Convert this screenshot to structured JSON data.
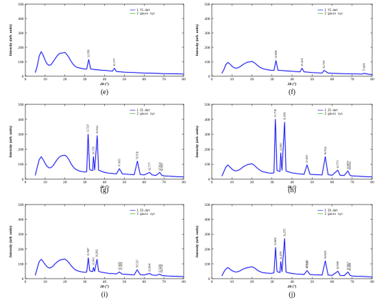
{
  "figure": {
    "ylabel": "Intensity (arb. units)",
    "xlabel": "2θ (°)"
  },
  "chart_data": [
    {
      "type": "line",
      "panel": "(e)",
      "xlim": [
        0,
        80
      ],
      "ylim": [
        0,
        500
      ],
      "xticks": [
        "0",
        "10",
        "20",
        "30",
        "40",
        "50",
        "60",
        "70",
        "80"
      ],
      "yticks": [
        "0",
        "100",
        "200",
        "300",
        "400",
        "500"
      ],
      "xlabel": "2θ (°)",
      "ylabel": "Intensity (arb. units)",
      "legend": [
        "1  Y1.dat",
        "2  gauss sys"
      ],
      "series": [
        {
          "name": "1  Y1.dat",
          "color": "#0000ee",
          "x": [
            5,
            6,
            7,
            8,
            9,
            10,
            11,
            12,
            13,
            14,
            15,
            16,
            17,
            18,
            19,
            20,
            21,
            22,
            23,
            24,
            25,
            26,
            27,
            28,
            29,
            30,
            31,
            32,
            33,
            34,
            36,
            38,
            40,
            42,
            44,
            45,
            46,
            48,
            50,
            55,
            60,
            65,
            70,
            75,
            80
          ],
          "y": [
            25,
            70,
            140,
            170,
            145,
            110,
            85,
            75,
            80,
            100,
            120,
            140,
            155,
            160,
            162,
            165,
            150,
            130,
            105,
            85,
            70,
            62,
            58,
            55,
            52,
            50,
            50,
            115,
            50,
            48,
            45,
            42,
            40,
            38,
            35,
            55,
            33,
            30,
            28,
            25,
            22,
            20,
            18,
            17,
            15
          ]
        }
      ],
      "peaks": [
        {
          "x": 32,
          "y": 115,
          "label": "31.9780"
        },
        {
          "x": 45,
          "y": 55,
          "label": "45.3737"
        }
      ]
    },
    {
      "type": "line",
      "panel": "(f)",
      "xlim": [
        0,
        80
      ],
      "ylim": [
        0,
        500
      ],
      "xticks": [
        "0",
        "10",
        "20",
        "30",
        "40",
        "50",
        "60",
        "70",
        "80"
      ],
      "yticks": [
        "0",
        "100",
        "200",
        "300",
        "400",
        "500"
      ],
      "xlabel": "2θ (°)",
      "ylabel": "Intensity (arb. units)",
      "legend": [
        "1  Y2.dat",
        "2  gauss sys"
      ],
      "series": [
        {
          "name": "1  Y2.dat",
          "color": "#0000ee",
          "x": [
            5,
            6,
            7,
            8,
            9,
            10,
            11,
            12,
            13,
            14,
            15,
            16,
            17,
            18,
            19,
            20,
            21,
            22,
            23,
            24,
            25,
            26,
            27,
            28,
            29,
            30,
            31,
            32,
            33,
            34,
            36,
            38,
            40,
            42,
            44,
            45,
            46,
            48,
            50,
            55,
            56,
            58,
            60,
            65,
            70,
            75,
            76,
            78,
            80
          ],
          "y": [
            20,
            45,
            80,
            95,
            85,
            70,
            60,
            55,
            58,
            65,
            75,
            85,
            92,
            98,
            100,
            103,
            95,
            85,
            72,
            62,
            55,
            50,
            47,
            45,
            42,
            40,
            40,
            108,
            42,
            40,
            38,
            36,
            34,
            32,
            30,
            55,
            30,
            28,
            25,
            22,
            40,
            22,
            20,
            18,
            16,
            15,
            20,
            14,
            12
          ]
        }
      ],
      "peaks": [
        {
          "x": 32,
          "y": 108,
          "label": "31.9698"
        },
        {
          "x": 45,
          "y": 55,
          "label": "45.4102"
        },
        {
          "x": 56,
          "y": 40,
          "label": "56.7070"
        },
        {
          "x": 76,
          "y": 20,
          "label": "75.6499"
        }
      ]
    },
    {
      "type": "line",
      "panel": "(g)",
      "xlim": [
        0,
        80
      ],
      "ylim": [
        0,
        500
      ],
      "xticks": [
        "0",
        "10",
        "20",
        "30",
        "40",
        "50",
        "60",
        "70",
        "80"
      ],
      "yticks": [
        "0",
        "100",
        "200",
        "300",
        "400",
        "500"
      ],
      "xlabel": "2θ (°)",
      "ylabel": "Intensity (arb. units)",
      "legend": [
        "1  Z1.dat",
        "2  gauss sys"
      ],
      "series": [
        {
          "name": "1  Z1.dat",
          "color": "#0000ee",
          "x": [
            5,
            6,
            7,
            8,
            9,
            10,
            11,
            12,
            13,
            14,
            15,
            16,
            17,
            18,
            19,
            20,
            21,
            22,
            23,
            24,
            25,
            26,
            27,
            28,
            29,
            30,
            31,
            31.7,
            32.5,
            33,
            34,
            34.4,
            35,
            36.3,
            37,
            38,
            40,
            42,
            44,
            46,
            47.5,
            49,
            52,
            55,
            56.6,
            58,
            60,
            62.8,
            64,
            66,
            67.9,
            69,
            70,
            72,
            75,
            80
          ],
          "y": [
            25,
            80,
            130,
            150,
            130,
            105,
            85,
            75,
            78,
            90,
            110,
            130,
            145,
            155,
            158,
            160,
            150,
            130,
            105,
            85,
            70,
            62,
            56,
            52,
            50,
            48,
            50,
            300,
            65,
            60,
            58,
            150,
            62,
            290,
            60,
            55,
            45,
            40,
            38,
            35,
            70,
            35,
            32,
            30,
            120,
            32,
            28,
            45,
            28,
            25,
            45,
            25,
            22,
            20,
            18,
            15
          ]
        }
      ],
      "peaks": [
        {
          "x": 31.7,
          "y": 300,
          "label": "31.7217"
        },
        {
          "x": 34.4,
          "y": 150,
          "label": "34.3726"
        },
        {
          "x": 36.3,
          "y": 290,
          "label": "36.2541"
        },
        {
          "x": 47.5,
          "y": 70,
          "label": "47.4955"
        },
        {
          "x": 56.6,
          "y": 120,
          "label": "56.5511"
        },
        {
          "x": 62.8,
          "y": 45,
          "label": "62.7777"
        },
        {
          "x": 67.9,
          "y": 45,
          "label": "67.9034"
        },
        {
          "x": 69.0,
          "y": 40,
          "label": "69.0829"
        }
      ]
    },
    {
      "type": "line",
      "panel": "(h)",
      "xlim": [
        0,
        80
      ],
      "ylim": [
        0,
        500
      ],
      "xticks": [
        "0",
        "10",
        "20",
        "30",
        "40",
        "50",
        "60",
        "70",
        "80"
      ],
      "yticks": [
        "0",
        "100",
        "200",
        "300",
        "400",
        "500"
      ],
      "xlabel": "2θ (°)",
      "ylabel": "Intensity (arb. units)",
      "legend": [
        "1  Z2.dat",
        "2  gauss sys"
      ],
      "series": [
        {
          "name": "1  Z2.dat",
          "color": "#0000ee",
          "x": [
            5,
            6,
            7,
            8,
            9,
            10,
            11,
            12,
            13,
            14,
            15,
            16,
            17,
            18,
            19,
            20,
            21,
            22,
            23,
            24,
            25,
            26,
            27,
            28,
            29,
            30,
            31,
            31.7,
            32.5,
            33,
            34,
            34.4,
            35,
            36.3,
            37,
            38,
            40,
            42,
            44,
            46,
            47.5,
            49,
            52,
            55,
            56.6,
            58,
            60,
            62.8,
            64,
            66,
            67.9,
            69,
            70,
            72,
            75,
            80
          ],
          "y": [
            20,
            50,
            80,
            95,
            82,
            68,
            58,
            55,
            58,
            65,
            75,
            85,
            92,
            98,
            100,
            103,
            95,
            82,
            70,
            60,
            52,
            48,
            45,
            42,
            40,
            40,
            42,
            400,
            60,
            55,
            52,
            175,
            60,
            380,
            55,
            50,
            42,
            38,
            35,
            32,
            95,
            32,
            30,
            28,
            150,
            30,
            26,
            60,
            26,
            24,
            55,
            24,
            22,
            20,
            18,
            15
          ]
        }
      ],
      "peaks": [
        {
          "x": 31.7,
          "y": 400,
          "label": "31.7718"
        },
        {
          "x": 34.4,
          "y": 175,
          "label": "34.3663"
        },
        {
          "x": 36.3,
          "y": 380,
          "label": "36.1969"
        },
        {
          "x": 47.5,
          "y": 95,
          "label": "47.4515"
        },
        {
          "x": 56.6,
          "y": 150,
          "label": "56.5544"
        },
        {
          "x": 62.8,
          "y": 60,
          "label": "62.7773"
        },
        {
          "x": 67.9,
          "y": 55,
          "label": "67.8870"
        },
        {
          "x": 69.0,
          "y": 50,
          "label": "69.0024"
        }
      ]
    },
    {
      "type": "line",
      "panel": "(i)",
      "xlim": [
        0,
        80
      ],
      "ylim": [
        0,
        500
      ],
      "xticks": [
        "0",
        "10",
        "20",
        "30",
        "40",
        "50",
        "60",
        "70",
        "80"
      ],
      "yticks": [
        "0",
        "100",
        "200",
        "300",
        "400",
        "500"
      ],
      "xlabel": "2θ (°)",
      "ylabel": "Intensity (arb. units)",
      "legend": [
        "1  Z3.dat",
        "2  gauss sys"
      ],
      "series": [
        {
          "name": "1  Z3.dat",
          "color": "#0000ee",
          "x": [
            5,
            6,
            7,
            8,
            9,
            10,
            11,
            12,
            13,
            14,
            15,
            16,
            17,
            18,
            19,
            20,
            21,
            22,
            23,
            24,
            25,
            26,
            27,
            28,
            29,
            30,
            31,
            31.8,
            32.5,
            33,
            34,
            34.4,
            35,
            36.2,
            37,
            38,
            40,
            42,
            44,
            46,
            47.5,
            49,
            52,
            55,
            56.5,
            58,
            60,
            62.8,
            64,
            66,
            67.9,
            69,
            70,
            72,
            75,
            80
          ],
          "y": [
            22,
            70,
            115,
            130,
            115,
            95,
            80,
            72,
            75,
            85,
            100,
            112,
            122,
            128,
            130,
            132,
            122,
            108,
            90,
            75,
            62,
            55,
            50,
            47,
            45,
            43,
            45,
            140,
            55,
            50,
            48,
            75,
            50,
            130,
            50,
            45,
            40,
            36,
            34,
            32,
            45,
            30,
            28,
            26,
            60,
            28,
            25,
            35,
            25,
            22,
            30,
            22,
            20,
            18,
            16,
            14
          ]
        }
      ],
      "peaks": [
        {
          "x": 31.8,
          "y": 140,
          "label": "31.7687"
        },
        {
          "x": 34.4,
          "y": 75,
          "label": "34.3443"
        },
        {
          "x": 36.2,
          "y": 130,
          "label": "36.2082"
        },
        {
          "x": 47.5,
          "y": 45,
          "label": "47.4095"
        },
        {
          "x": 47.5,
          "y": 45,
          "label": "47.4091"
        },
        {
          "x": 56.5,
          "y": 60,
          "label": "56.5127"
        },
        {
          "x": 62.8,
          "y": 35,
          "label": "62.8148"
        },
        {
          "x": 67.9,
          "y": 30,
          "label": "67.9256"
        },
        {
          "x": 69.0,
          "y": 28,
          "label": "69.0716"
        }
      ]
    },
    {
      "type": "line",
      "panel": "(j)",
      "xlim": [
        0,
        80
      ],
      "ylim": [
        0,
        500
      ],
      "xticks": [
        "0",
        "10",
        "20",
        "30",
        "40",
        "50",
        "60",
        "70",
        "80"
      ],
      "yticks": [
        "0",
        "100",
        "200",
        "300",
        "400",
        "500"
      ],
      "xlabel": "2θ (°)",
      "ylabel": "Intensity (arb. units)",
      "legend": [
        "1  Z4.dat",
        "2  gauss sys"
      ],
      "series": [
        {
          "name": "1  Z4.dat",
          "color": "#0000ee",
          "x": [
            5,
            6,
            7,
            8,
            9,
            10,
            11,
            12,
            13,
            14,
            15,
            16,
            17,
            18,
            19,
            20,
            21,
            22,
            23,
            24,
            25,
            26,
            27,
            28,
            29,
            30,
            31,
            31.8,
            32.5,
            33,
            34,
            34.4,
            35,
            36.3,
            37,
            38,
            40,
            42,
            44,
            46,
            47.5,
            49,
            52,
            55,
            56.6,
            58,
            60,
            62.9,
            64,
            66,
            67.9,
            69,
            70,
            72,
            75,
            80
          ],
          "y": [
            18,
            45,
            65,
            75,
            65,
            55,
            48,
            45,
            47,
            52,
            60,
            66,
            72,
            75,
            78,
            80,
            75,
            65,
            55,
            48,
            42,
            40,
            38,
            37,
            36,
            36,
            40,
            210,
            50,
            45,
            42,
            115,
            48,
            270,
            45,
            40,
            35,
            32,
            30,
            28,
            55,
            28,
            26,
            24,
            120,
            25,
            22,
            50,
            22,
            20,
            45,
            22,
            18,
            16,
            15,
            12
          ]
        }
      ],
      "peaks": [
        {
          "x": 31.8,
          "y": 210,
          "label": "31.8406"
        },
        {
          "x": 34.4,
          "y": 115,
          "label": "34.4559"
        },
        {
          "x": 36.3,
          "y": 270,
          "label": "36.2555"
        },
        {
          "x": 47.5,
          "y": 55,
          "label": "47.5332"
        },
        {
          "x": 47.6,
          "y": 55,
          "label": "47.6115"
        },
        {
          "x": 56.6,
          "y": 120,
          "label": "56.5629"
        },
        {
          "x": 62.9,
          "y": 50,
          "label": "62.9069"
        },
        {
          "x": 67.9,
          "y": 45,
          "label": "67.9837"
        },
        {
          "x": 69.0,
          "y": 40,
          "label": "69.0895"
        }
      ]
    }
  ]
}
